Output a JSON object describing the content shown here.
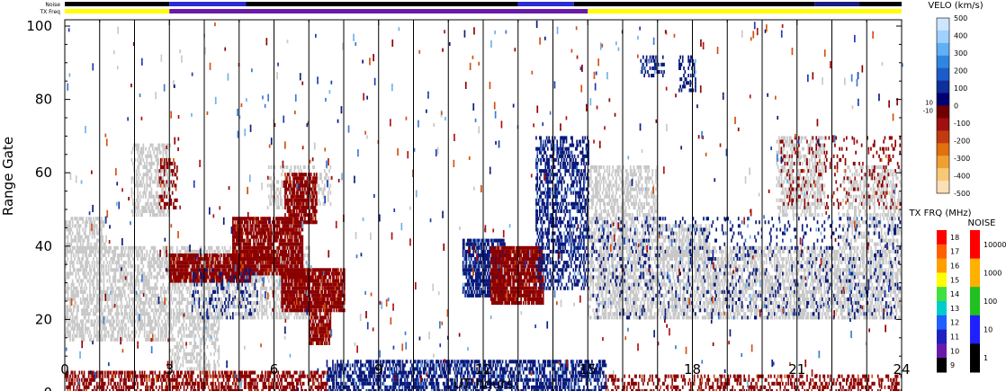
{
  "chart_data": {
    "type": "heatmap",
    "xlabel": "UT hours",
    "ylabel": "Range Gate",
    "xlim": [
      0,
      24
    ],
    "ylim": [
      0,
      100
    ],
    "xticks": [
      "0",
      "3",
      "6",
      "9",
      "12",
      "15",
      "18",
      "21",
      "24"
    ],
    "yticks": [
      "0",
      "20",
      "40",
      "60",
      "80",
      "100"
    ],
    "status_bars": {
      "noise_label": "Noise",
      "txfreq_label": "TX Freq",
      "txfreq_segments": [
        {
          "start": 0,
          "end": 3,
          "color": "#ffff00"
        },
        {
          "start": 3,
          "end": 15,
          "color": "#6a1aa8"
        },
        {
          "start": 15,
          "end": 24,
          "color": "#ffff00"
        }
      ],
      "noise_segments": [
        {
          "start": 0,
          "end": 3,
          "color": "#000000"
        },
        {
          "start": 3,
          "end": 5.2,
          "color": "#2b2bd6"
        },
        {
          "start": 5.2,
          "end": 13,
          "color": "#000000"
        },
        {
          "start": 13,
          "end": 14.6,
          "color": "#2b2bd6"
        },
        {
          "start": 14.6,
          "end": 21.5,
          "color": "#000000"
        },
        {
          "start": 21.5,
          "end": 22.8,
          "color": "#1a1a80"
        },
        {
          "start": 22.8,
          "end": 24,
          "color": "#000000"
        }
      ]
    },
    "regions": [
      {
        "type": "groundscatter",
        "t0": 0,
        "t1": 3,
        "g0": 14,
        "g1": 40,
        "density": 0.55
      },
      {
        "type": "groundscatter",
        "t0": 0,
        "t1": 1.2,
        "g0": 38,
        "g1": 48,
        "density": 0.6
      },
      {
        "type": "groundscatter",
        "t0": 1.9,
        "t1": 3,
        "g0": 48,
        "g1": 68,
        "density": 0.5
      },
      {
        "type": "groundscatter",
        "t0": 3,
        "t1": 4.4,
        "g0": 6,
        "g1": 22,
        "density": 0.45
      },
      {
        "type": "groundscatter",
        "t0": 3,
        "t1": 7,
        "g0": 20,
        "g1": 40,
        "density": 0.45
      },
      {
        "type": "groundscatter",
        "t0": 5.8,
        "t1": 7.6,
        "g0": 50,
        "g1": 62,
        "density": 0.3
      },
      {
        "type": "negative",
        "t0": 3,
        "t1": 5.3,
        "g0": 30,
        "g1": 38,
        "density": 0.85
      },
      {
        "type": "negative",
        "t0": 4.8,
        "t1": 6.8,
        "g0": 32,
        "g1": 48,
        "density": 0.85
      },
      {
        "type": "negative",
        "t0": 6.3,
        "t1": 7.2,
        "g0": 46,
        "g1": 60,
        "density": 0.8
      },
      {
        "type": "negative",
        "t0": 6.2,
        "t1": 8.0,
        "g0": 22,
        "g1": 34,
        "density": 0.85
      },
      {
        "type": "negative",
        "t0": 7.0,
        "t1": 7.6,
        "g0": 13,
        "g1": 22,
        "density": 0.8
      },
      {
        "type": "negative",
        "t0": 2.7,
        "t1": 3.2,
        "g0": 50,
        "g1": 64,
        "density": 0.4
      },
      {
        "type": "positive",
        "t0": 3.6,
        "t1": 5.5,
        "g0": 20,
        "g1": 34,
        "density": 0.15
      },
      {
        "type": "positive",
        "t0": 11.4,
        "t1": 12.6,
        "g0": 26,
        "g1": 42,
        "density": 0.75
      },
      {
        "type": "negative",
        "t0": 12.2,
        "t1": 13.7,
        "g0": 24,
        "g1": 40,
        "density": 0.9
      },
      {
        "type": "positive",
        "t0": 13.5,
        "t1": 15,
        "g0": 38,
        "g1": 70,
        "density": 0.5
      },
      {
        "type": "positive",
        "t0": 13.5,
        "t1": 15,
        "g0": 28,
        "g1": 38,
        "density": 0.4
      },
      {
        "type": "positive",
        "t0": 7.5,
        "t1": 15.5,
        "g0": 0,
        "g1": 9,
        "density": 0.6
      },
      {
        "type": "negative",
        "t0": 0,
        "t1": 7.5,
        "g0": 0,
        "g1": 6,
        "density": 0.55
      },
      {
        "type": "negative",
        "t0": 15.5,
        "t1": 24,
        "g0": 0,
        "g1": 5,
        "density": 0.35
      },
      {
        "type": "groundscatter",
        "t0": 15,
        "t1": 24,
        "g0": 20,
        "g1": 40,
        "density": 0.55
      },
      {
        "type": "groundscatter",
        "t0": 15,
        "t1": 17,
        "g0": 40,
        "g1": 62,
        "density": 0.5
      },
      {
        "type": "groundscatter",
        "t0": 17,
        "t1": 18.5,
        "g0": 36,
        "g1": 46,
        "density": 0.55
      },
      {
        "type": "groundscatter",
        "t0": 20.4,
        "t1": 21.8,
        "g0": 48,
        "g1": 70,
        "density": 0.45
      },
      {
        "type": "groundscatter",
        "t0": 22.3,
        "t1": 24,
        "g0": 40,
        "g1": 62,
        "density": 0.4
      },
      {
        "type": "positive",
        "t0": 15,
        "t1": 24,
        "g0": 20,
        "g1": 48,
        "density": 0.1
      },
      {
        "type": "positive",
        "t0": 16.5,
        "t1": 17.2,
        "g0": 86,
        "g1": 92,
        "density": 0.35
      },
      {
        "type": "positive",
        "t0": 17.6,
        "t1": 18.1,
        "g0": 82,
        "g1": 92,
        "density": 0.35
      },
      {
        "type": "negative",
        "t0": 20.5,
        "t1": 24,
        "g0": 50,
        "g1": 70,
        "density": 0.12
      }
    ],
    "velocity_scale": {
      "title": "VELO (km/s)",
      "labels": [
        "500",
        "400",
        "300",
        "200",
        "100",
        "0",
        "-100",
        "-200",
        "-300",
        "-400",
        "-500"
      ],
      "side_labels": [
        "10",
        "-10"
      ],
      "colors": [
        "#cbe6ff",
        "#9fd0ff",
        "#5fb0f5",
        "#2f86e0",
        "#1a5cc8",
        "#0f2f9a",
        "#000070",
        "#700000",
        "#a01010",
        "#c23a10",
        "#e07010",
        "#f0a030",
        "#f7c875",
        "#fbe0b5"
      ]
    },
    "txfreq_scale": {
      "title": "TX FRQ (MHz)",
      "labels": [
        "18",
        "17",
        "16",
        "15",
        "14",
        "13",
        "12",
        "11",
        "10",
        "9"
      ],
      "colors": [
        "#ff0000",
        "#ff6000",
        "#ffa000",
        "#ffff00",
        "#40e040",
        "#00cccc",
        "#2060ff",
        "#2020c0",
        "#6a1aa8",
        "#000000"
      ]
    },
    "noise_scale": {
      "title": "NOISE",
      "labels": [
        "10000",
        "1000",
        "100",
        "10",
        "1"
      ],
      "colors": [
        "#ff0000",
        "#ffb000",
        "#20c020",
        "#2020ff",
        "#000000"
      ]
    },
    "colors": {
      "groundscatter": "#c8c8c8",
      "negative": "#8b0000",
      "positive": "#0a1a7a",
      "scatter_negative": [
        "#8b0000",
        "#b01010",
        "#d05010"
      ],
      "scatter_positive": [
        "#0a1a7a",
        "#1a3ab0",
        "#3a7ad0",
        "#6fb0e8"
      ]
    }
  }
}
